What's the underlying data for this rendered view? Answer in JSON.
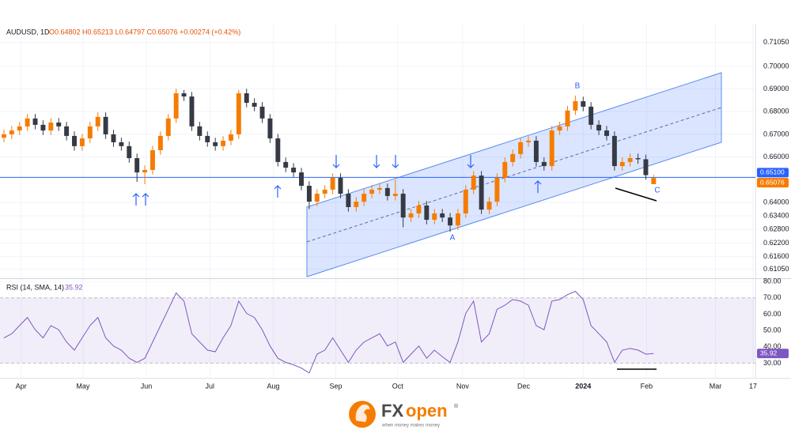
{
  "chart_data": [
    {
      "type": "candlestick",
      "symbol": "AUDUSD, 1D",
      "ohlc_label": "O0.64802 H0.65213 L0.64797 C0.65076 +0.00274 (+0.42%)",
      "up_color": "#f57c00",
      "down_color": "#363a45",
      "open": [
        0.6685,
        0.67,
        0.6717,
        0.6735,
        0.677,
        0.6742,
        0.6717,
        0.6752,
        0.6735,
        0.6693,
        0.6648,
        0.6682,
        0.6735,
        0.6777,
        0.67,
        0.6665,
        0.6648,
        0.6595,
        0.6532,
        0.6543,
        0.663,
        0.6693,
        0.677,
        0.6881,
        0.6867,
        0.6735,
        0.6693,
        0.6665,
        0.6648,
        0.6672,
        0.67,
        0.6881,
        0.6839,
        0.6822,
        0.677,
        0.6682,
        0.6578,
        0.6553,
        0.6532,
        0.6473,
        0.6403,
        0.6438,
        0.6456,
        0.6508,
        0.6438,
        0.6379,
        0.6403,
        0.6438,
        0.6456,
        0.6463,
        0.6428,
        0.6438,
        0.6333,
        0.6351,
        0.6386,
        0.6323,
        0.6351,
        0.6333,
        0.6298,
        0.6351,
        0.6456,
        0.6518,
        0.6368,
        0.6403,
        0.6508,
        0.6578,
        0.6613,
        0.6665,
        0.6672,
        0.6578,
        0.656,
        0.6717,
        0.6735,
        0.6805,
        0.6846,
        0.6822,
        0.6742,
        0.6717,
        0.6693,
        0.656,
        0.6578,
        0.6595,
        0.659,
        0.64802
      ],
      "high": [
        0.672,
        0.6737,
        0.6755,
        0.679,
        0.679,
        0.6762,
        0.6772,
        0.6772,
        0.6755,
        0.6713,
        0.6702,
        0.6755,
        0.6797,
        0.6797,
        0.672,
        0.6685,
        0.6668,
        0.6615,
        0.6563,
        0.665,
        0.6713,
        0.679,
        0.6901,
        0.6895,
        0.6887,
        0.6755,
        0.6713,
        0.6685,
        0.6692,
        0.672,
        0.6895,
        0.6901,
        0.6859,
        0.6842,
        0.679,
        0.6702,
        0.6598,
        0.6573,
        0.6552,
        0.6493,
        0.6458,
        0.6476,
        0.6528,
        0.6528,
        0.6458,
        0.6423,
        0.6458,
        0.6476,
        0.6483,
        0.6483,
        0.65,
        0.6458,
        0.6371,
        0.6406,
        0.6406,
        0.6371,
        0.6371,
        0.6353,
        0.6371,
        0.6476,
        0.6538,
        0.6538,
        0.6423,
        0.6528,
        0.6598,
        0.6633,
        0.6685,
        0.6692,
        0.6692,
        0.6598,
        0.6737,
        0.6755,
        0.6825,
        0.6871,
        0.6866,
        0.6842,
        0.6762,
        0.6737,
        0.6713,
        0.6598,
        0.6615,
        0.6615,
        0.661,
        0.65213
      ],
      "low": [
        0.6665,
        0.668,
        0.6697,
        0.6715,
        0.6722,
        0.6697,
        0.6697,
        0.6715,
        0.6673,
        0.6628,
        0.6628,
        0.6662,
        0.6715,
        0.668,
        0.6645,
        0.6628,
        0.6575,
        0.649,
        0.648,
        0.6523,
        0.661,
        0.6673,
        0.675,
        0.6847,
        0.6715,
        0.6673,
        0.6645,
        0.6628,
        0.6628,
        0.6652,
        0.668,
        0.6819,
        0.6802,
        0.675,
        0.6662,
        0.6558,
        0.6533,
        0.6512,
        0.6453,
        0.637,
        0.6383,
        0.6418,
        0.6436,
        0.6418,
        0.6359,
        0.6359,
        0.6383,
        0.6418,
        0.6436,
        0.6408,
        0.6408,
        0.629,
        0.6313,
        0.6331,
        0.6303,
        0.6303,
        0.6313,
        0.627,
        0.6278,
        0.6331,
        0.6436,
        0.6348,
        0.6348,
        0.6383,
        0.6488,
        0.6558,
        0.6593,
        0.6645,
        0.6558,
        0.654,
        0.654,
        0.6697,
        0.6715,
        0.6785,
        0.6802,
        0.6722,
        0.6697,
        0.6673,
        0.654,
        0.654,
        0.6558,
        0.657,
        0.65,
        0.64797
      ],
      "close": [
        0.67,
        0.6717,
        0.6735,
        0.677,
        0.6742,
        0.6717,
        0.6752,
        0.6735,
        0.6693,
        0.6648,
        0.6682,
        0.6735,
        0.6777,
        0.67,
        0.6665,
        0.6648,
        0.6595,
        0.6532,
        0.6543,
        0.663,
        0.6693,
        0.677,
        0.6881,
        0.6867,
        0.6735,
        0.6693,
        0.6665,
        0.6648,
        0.6672,
        0.67,
        0.6881,
        0.6839,
        0.6822,
        0.677,
        0.6682,
        0.6578,
        0.6553,
        0.6532,
        0.6473,
        0.6403,
        0.6438,
        0.6456,
        0.6508,
        0.6438,
        0.6379,
        0.6403,
        0.6438,
        0.6456,
        0.6463,
        0.6428,
        0.6438,
        0.6333,
        0.6351,
        0.6386,
        0.6323,
        0.6351,
        0.6333,
        0.6298,
        0.6351,
        0.6456,
        0.6518,
        0.6368,
        0.6403,
        0.6508,
        0.6578,
        0.6613,
        0.6665,
        0.6672,
        0.6578,
        0.656,
        0.6717,
        0.6735,
        0.6805,
        0.6846,
        0.6822,
        0.6742,
        0.6717,
        0.6693,
        0.656,
        0.6578,
        0.6595,
        0.659,
        0.652,
        0.65076
      ],
      "xlim": [
        -0.5,
        96
      ],
      "xticks": [
        {
          "value": 2.2,
          "label": "Apr"
        },
        {
          "value": 10.1,
          "label": "May"
        },
        {
          "value": 18.2,
          "label": "Jun"
        },
        {
          "value": 26.3,
          "label": "Jul"
        },
        {
          "value": 34.4,
          "label": "Aug"
        },
        {
          "value": 42.4,
          "label": "Sep"
        },
        {
          "value": 50.3,
          "label": "Oct"
        },
        {
          "value": 58.6,
          "label": "Nov"
        },
        {
          "value": 66.4,
          "label": "Dec"
        },
        {
          "value": 74.0,
          "label": "2024"
        },
        {
          "value": 82.1,
          "label": "Feb"
        },
        {
          "value": 90.9,
          "label": "Mar"
        },
        {
          "value": 95.7,
          "label": "17"
        }
      ],
      "ylim": [
        0.6065,
        0.7188
      ],
      "yticks": [
        {
          "value": 0.7105,
          "label": "0.71050"
        },
        {
          "value": 0.7,
          "label": "0.70000"
        },
        {
          "value": 0.69,
          "label": "0.69000"
        },
        {
          "value": 0.68,
          "label": "0.68000"
        },
        {
          "value": 0.67,
          "label": "0.67000"
        },
        {
          "value": 0.66,
          "label": "0.66000"
        },
        {
          "value": 0.64,
          "label": "0.64000"
        },
        {
          "value": 0.634,
          "label": "0.63400"
        },
        {
          "value": 0.628,
          "label": "0.62800"
        },
        {
          "value": 0.622,
          "label": "0.62200"
        },
        {
          "value": 0.616,
          "label": "0.61600"
        },
        {
          "value": 0.6105,
          "label": "0.61050"
        }
      ],
      "hline": {
        "value": 0.651,
        "label": "0.65100"
      },
      "grid": true,
      "annotations": [
        "A",
        "B",
        "C"
      ]
    },
    {
      "type": "line",
      "title": "RSI (14, SMA, 14)",
      "color": "#7e57c2",
      "values": [
        45.5,
        48,
        53,
        58,
        50.5,
        45.5,
        53,
        50.5,
        43,
        38,
        45.5,
        53,
        58,
        45.5,
        40.5,
        38,
        33,
        30.5,
        33,
        43,
        53,
        63,
        73,
        68,
        48,
        43,
        38,
        37,
        45.5,
        53,
        68,
        60.5,
        58,
        50.5,
        40.5,
        33,
        30.5,
        29,
        27,
        24,
        35.5,
        38,
        45.5,
        38,
        30.5,
        38,
        43,
        45.5,
        48,
        40.5,
        43,
        30.5,
        35.5,
        40.5,
        33,
        38,
        34,
        30.5,
        43,
        60.5,
        68,
        43,
        48,
        63,
        65.5,
        69,
        68,
        65.5,
        53,
        50.5,
        68,
        69,
        72,
        74,
        69,
        53,
        48,
        43,
        30.5,
        38,
        39,
        38,
        35.5,
        35.92
      ],
      "ylim": [
        21,
        82
      ],
      "yticks": [
        {
          "value": 80,
          "label": "80.00"
        },
        {
          "value": 70,
          "label": "70.00"
        },
        {
          "value": 60,
          "label": "60.00"
        },
        {
          "value": 50,
          "label": "50.00"
        },
        {
          "value": 40,
          "label": "40.00"
        },
        {
          "value": 30,
          "label": "30.00"
        }
      ],
      "band": [
        30,
        70
      ]
    }
  ],
  "logo": {
    "left": "FX",
    "right": "open",
    "mark": "®",
    "tagline": "when money makes money"
  }
}
